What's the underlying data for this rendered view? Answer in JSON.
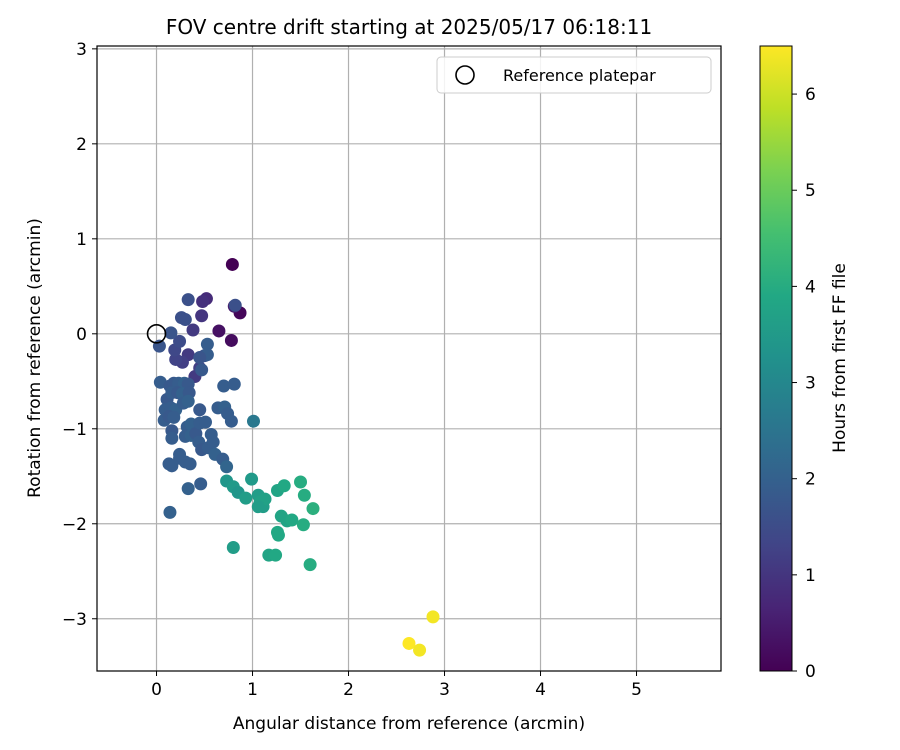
{
  "chart_data": {
    "type": "scatter",
    "title": "FOV centre drift starting at 2025/05/17 06:18:11",
    "xlabel": "Angular distance from reference (arcmin)",
    "ylabel": "Rotation from reference (arcmin)",
    "xlim": [
      -0.62,
      5.88
    ],
    "ylim": [
      -3.55,
      3.03
    ],
    "xticks": [
      0,
      1,
      2,
      3,
      4,
      5
    ],
    "yticks": [
      -3,
      -2,
      -1,
      0,
      1,
      2,
      3
    ],
    "grid": true,
    "colormap": "viridis",
    "colorbar": {
      "label": "Hours from first FF file",
      "range": [
        0,
        6.5
      ],
      "ticks": [
        0,
        1,
        2,
        3,
        4,
        5,
        6
      ]
    },
    "legend": {
      "position": "upper-right",
      "entries": [
        {
          "label": "Reference platepar",
          "marker": "open-circle"
        }
      ]
    },
    "reference_point": {
      "x": 0,
      "y": 0
    },
    "points": [
      {
        "x": 0.79,
        "y": 0.73,
        "h": 0.0
      },
      {
        "x": 0.87,
        "y": 0.22,
        "h": 0.1
      },
      {
        "x": 0.78,
        "y": -0.07,
        "h": 0.2
      },
      {
        "x": 0.65,
        "y": 0.03,
        "h": 0.3
      },
      {
        "x": 0.81,
        "y": 0.29,
        "h": 0.5
      },
      {
        "x": 0.52,
        "y": 0.37,
        "h": 0.8
      },
      {
        "x": 0.48,
        "y": 0.34,
        "h": 0.9
      },
      {
        "x": 0.47,
        "y": 0.19,
        "h": 1.0
      },
      {
        "x": 0.38,
        "y": 0.04,
        "h": 1.1
      },
      {
        "x": 0.4,
        "y": -0.45,
        "h": 1.1
      },
      {
        "x": 0.45,
        "y": -0.36,
        "h": 1.2
      },
      {
        "x": 0.33,
        "y": -0.22,
        "h": 1.1
      },
      {
        "x": 0.27,
        "y": -0.3,
        "h": 1.2
      },
      {
        "x": 0.2,
        "y": -0.27,
        "h": 1.3
      },
      {
        "x": 0.19,
        "y": -0.17,
        "h": 1.4
      },
      {
        "x": 0.24,
        "y": -0.08,
        "h": 1.5
      },
      {
        "x": 0.26,
        "y": 0.17,
        "h": 1.6
      },
      {
        "x": 0.3,
        "y": 0.15,
        "h": 1.6
      },
      {
        "x": 0.33,
        "y": 0.36,
        "h": 1.6
      },
      {
        "x": 0.15,
        "y": 0.01,
        "h": 1.7
      },
      {
        "x": 0.03,
        "y": -0.13,
        "h": 1.7
      },
      {
        "x": 0.5,
        "y": -0.23,
        "h": 1.7
      },
      {
        "x": 0.53,
        "y": -0.11,
        "h": 1.9
      },
      {
        "x": 0.53,
        "y": -0.22,
        "h": 1.9
      },
      {
        "x": 0.47,
        "y": -0.38,
        "h": 1.8
      },
      {
        "x": 0.45,
        "y": -0.25,
        "h": 1.7
      },
      {
        "x": 0.82,
        "y": 0.3,
        "h": 1.6
      },
      {
        "x": 0.04,
        "y": -0.51,
        "h": 1.9
      },
      {
        "x": 0.14,
        "y": -0.55,
        "h": 1.8
      },
      {
        "x": 0.18,
        "y": -0.52,
        "h": 1.8
      },
      {
        "x": 0.23,
        "y": -0.52,
        "h": 1.9
      },
      {
        "x": 0.29,
        "y": -0.52,
        "h": 2.0
      },
      {
        "x": 0.33,
        "y": -0.53,
        "h": 1.8
      },
      {
        "x": 0.11,
        "y": -0.69,
        "h": 1.8
      },
      {
        "x": 0.16,
        "y": -0.62,
        "h": 1.9
      },
      {
        "x": 0.22,
        "y": -0.62,
        "h": 1.8
      },
      {
        "x": 0.27,
        "y": -0.63,
        "h": 2.0
      },
      {
        "x": 0.34,
        "y": -0.62,
        "h": 1.8
      },
      {
        "x": 0.09,
        "y": -0.8,
        "h": 1.9
      },
      {
        "x": 0.15,
        "y": -0.78,
        "h": 1.9
      },
      {
        "x": 0.2,
        "y": -0.8,
        "h": 2.0
      },
      {
        "x": 0.28,
        "y": -0.73,
        "h": 1.9
      },
      {
        "x": 0.33,
        "y": -0.71,
        "h": 2.0
      },
      {
        "x": 0.08,
        "y": -0.91,
        "h": 1.9
      },
      {
        "x": 0.13,
        "y": -0.87,
        "h": 1.8
      },
      {
        "x": 0.18,
        "y": -0.88,
        "h": 1.9
      },
      {
        "x": 0.16,
        "y": -1.02,
        "h": 1.8
      },
      {
        "x": 0.16,
        "y": -1.1,
        "h": 1.9
      },
      {
        "x": 0.32,
        "y": -0.98,
        "h": 1.9
      },
      {
        "x": 0.36,
        "y": -0.95,
        "h": 2.0
      },
      {
        "x": 0.3,
        "y": -1.08,
        "h": 1.9
      },
      {
        "x": 0.36,
        "y": -1.07,
        "h": 2.0
      },
      {
        "x": 0.41,
        "y": -1.05,
        "h": 1.8
      },
      {
        "x": 0.45,
        "y": -0.8,
        "h": 1.8
      },
      {
        "x": 0.45,
        "y": -0.94,
        "h": 1.9
      },
      {
        "x": 0.51,
        "y": -0.93,
        "h": 1.9
      },
      {
        "x": 0.57,
        "y": -1.06,
        "h": 1.9
      },
      {
        "x": 0.44,
        "y": -1.14,
        "h": 1.9
      },
      {
        "x": 0.47,
        "y": -1.22,
        "h": 1.8
      },
      {
        "x": 0.54,
        "y": -1.2,
        "h": 1.9
      },
      {
        "x": 0.59,
        "y": -1.14,
        "h": 1.9
      },
      {
        "x": 0.61,
        "y": -1.27,
        "h": 2.0
      },
      {
        "x": 0.64,
        "y": -0.78,
        "h": 1.9
      },
      {
        "x": 0.71,
        "y": -0.77,
        "h": 2.0
      },
      {
        "x": 0.74,
        "y": -0.84,
        "h": 1.9
      },
      {
        "x": 0.78,
        "y": -0.92,
        "h": 1.9
      },
      {
        "x": 0.7,
        "y": -0.55,
        "h": 1.9
      },
      {
        "x": 0.81,
        "y": -0.53,
        "h": 1.9
      },
      {
        "x": 0.24,
        "y": -1.27,
        "h": 1.9
      },
      {
        "x": 0.24,
        "y": -1.31,
        "h": 1.9
      },
      {
        "x": 0.3,
        "y": -1.35,
        "h": 1.9
      },
      {
        "x": 0.35,
        "y": -1.37,
        "h": 1.9
      },
      {
        "x": 0.13,
        "y": -1.37,
        "h": 1.9
      },
      {
        "x": 0.16,
        "y": -1.39,
        "h": 1.9
      },
      {
        "x": 0.33,
        "y": -1.63,
        "h": 2.0
      },
      {
        "x": 0.46,
        "y": -1.58,
        "h": 1.9
      },
      {
        "x": 0.69,
        "y": -1.32,
        "h": 1.9
      },
      {
        "x": 0.73,
        "y": -1.4,
        "h": 2.1
      },
      {
        "x": 0.14,
        "y": -1.88,
        "h": 2.0
      },
      {
        "x": 1.01,
        "y": -0.92,
        "h": 2.6
      },
      {
        "x": 0.73,
        "y": -1.55,
        "h": 3.4
      },
      {
        "x": 0.8,
        "y": -1.61,
        "h": 3.5
      },
      {
        "x": 0.85,
        "y": -1.67,
        "h": 3.4
      },
      {
        "x": 0.93,
        "y": -1.73,
        "h": 3.6
      },
      {
        "x": 0.99,
        "y": -1.53,
        "h": 3.5
      },
      {
        "x": 1.06,
        "y": -1.7,
        "h": 3.6
      },
      {
        "x": 1.08,
        "y": -1.77,
        "h": 3.7
      },
      {
        "x": 1.11,
        "y": -1.82,
        "h": 3.6
      },
      {
        "x": 1.13,
        "y": -1.74,
        "h": 3.7
      },
      {
        "x": 1.06,
        "y": -1.82,
        "h": 3.6
      },
      {
        "x": 1.26,
        "y": -1.65,
        "h": 3.8
      },
      {
        "x": 1.33,
        "y": -1.6,
        "h": 3.9
      },
      {
        "x": 1.3,
        "y": -1.92,
        "h": 3.8
      },
      {
        "x": 1.36,
        "y": -1.97,
        "h": 3.8
      },
      {
        "x": 1.41,
        "y": -1.96,
        "h": 3.9
      },
      {
        "x": 1.5,
        "y": -1.56,
        "h": 4.0
      },
      {
        "x": 1.54,
        "y": -1.7,
        "h": 4.0
      },
      {
        "x": 1.53,
        "y": -2.01,
        "h": 4.0
      },
      {
        "x": 1.63,
        "y": -1.84,
        "h": 4.1
      },
      {
        "x": 1.26,
        "y": -2.09,
        "h": 3.9
      },
      {
        "x": 1.27,
        "y": -2.12,
        "h": 3.9
      },
      {
        "x": 1.17,
        "y": -2.33,
        "h": 3.8
      },
      {
        "x": 1.24,
        "y": -2.33,
        "h": 3.9
      },
      {
        "x": 1.6,
        "y": -2.43,
        "h": 4.0
      },
      {
        "x": 0.8,
        "y": -2.25,
        "h": 3.6
      },
      {
        "x": 2.88,
        "y": -2.98,
        "h": 6.4
      },
      {
        "x": 2.63,
        "y": -3.26,
        "h": 6.5
      },
      {
        "x": 2.74,
        "y": -3.33,
        "h": 6.4
      }
    ]
  }
}
